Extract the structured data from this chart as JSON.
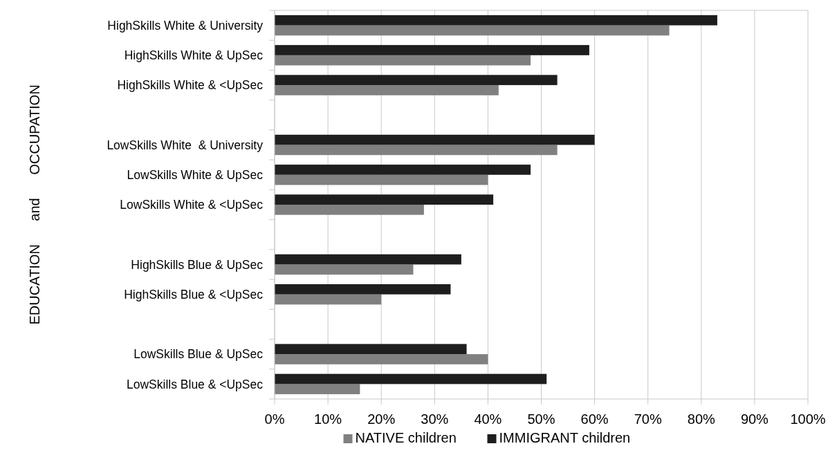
{
  "chart_data": {
    "type": "bar",
    "orientation": "horizontal",
    "ylabel": "EDUCATION and OCCUPATION",
    "categories": [
      "HighSkills White & University",
      "HighSkills White & UpSec",
      "HighSkills White & <UpSec",
      null,
      "LowSkills White  & University",
      "LowSkills White & UpSec",
      "LowSkills White & <UpSec",
      null,
      "HighSkills Blue & UpSec",
      "HighSkills Blue & <UpSec",
      null,
      "LowSkills Blue & UpSec",
      "LowSkills Blue & <UpSec"
    ],
    "series": [
      {
        "name": "NATIVE children",
        "color": "#808080",
        "values": [
          74,
          48,
          42,
          null,
          53,
          40,
          28,
          null,
          26,
          20,
          null,
          40,
          16
        ]
      },
      {
        "name": "IMMIGRANT children",
        "color": "#1e1e1e",
        "values": [
          83,
          59,
          53,
          null,
          60,
          48,
          41,
          null,
          35,
          33,
          null,
          36,
          51
        ]
      }
    ],
    "xlim": [
      0,
      100
    ],
    "xticks": [
      {
        "value": 0,
        "label": "0%"
      },
      {
        "value": 10,
        "label": "10%"
      },
      {
        "value": 20,
        "label": "20%"
      },
      {
        "value": 30,
        "label": "30%"
      },
      {
        "value": 40,
        "label": "40%"
      },
      {
        "value": 50,
        "label": "50%"
      },
      {
        "value": 60,
        "label": "60%"
      },
      {
        "value": 70,
        "label": "70%"
      },
      {
        "value": 80,
        "label": "80%"
      },
      {
        "value": 90,
        "label": "90%"
      },
      {
        "value": 100,
        "label": "100%"
      }
    ],
    "grid": "x",
    "legend": "bottom"
  }
}
